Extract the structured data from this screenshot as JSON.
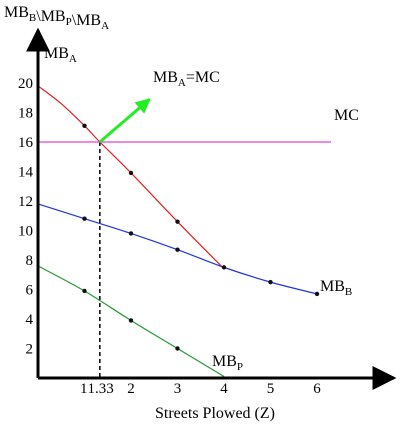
{
  "chart_data": {
    "type": "line",
    "title": "",
    "ylabel": {
      "parts": [
        {
          "text": "MB",
          "sub": "B"
        },
        {
          "text": "\\MB",
          "sub": "P"
        },
        {
          "text": "\\MB",
          "sub": "A"
        }
      ]
    },
    "xlabel": "Streets Plowed (Z)",
    "xlim": [
      0,
      7.2
    ],
    "ylim": [
      0,
      21
    ],
    "x_ticks": [
      {
        "value": 1,
        "label": "1"
      },
      {
        "value": 1.33,
        "label": "1.33"
      },
      {
        "value": 2,
        "label": "2"
      },
      {
        "value": 3,
        "label": "3"
      },
      {
        "value": 4,
        "label": "4"
      },
      {
        "value": 5,
        "label": "5"
      },
      {
        "value": 6,
        "label": "6"
      }
    ],
    "y_ticks": [
      {
        "value": 2,
        "label": "2"
      },
      {
        "value": 4,
        "label": "4"
      },
      {
        "value": 6,
        "label": "6"
      },
      {
        "value": 8,
        "label": "8"
      },
      {
        "value": 10,
        "label": "10"
      },
      {
        "value": 12,
        "label": "12"
      },
      {
        "value": 14,
        "label": "14"
      },
      {
        "value": 16,
        "label": "16"
      },
      {
        "value": 18,
        "label": "18"
      },
      {
        "value": 20,
        "label": "20"
      }
    ],
    "series": [
      {
        "name": "MBA",
        "label": {
          "text": "MB",
          "sub": "A"
        },
        "color": "#e02020",
        "x": [
          0,
          0.5,
          1,
          1.33,
          2,
          3,
          4
        ],
        "y": [
          19.8,
          18.6,
          17.1,
          16.0,
          13.9,
          10.6,
          7.4
        ],
        "markers": [
          [
            1,
            17.1
          ],
          [
            2,
            13.9
          ],
          [
            3,
            10.6
          ]
        ]
      },
      {
        "name": "MBB",
        "label": {
          "text": "MB",
          "sub": "B"
        },
        "color": "#2233dd",
        "x": [
          0,
          1,
          2,
          3,
          4,
          5,
          6
        ],
        "y": [
          11.8,
          10.8,
          9.8,
          8.7,
          7.5,
          6.5,
          5.7
        ],
        "markers": [
          [
            1,
            10.8
          ],
          [
            2,
            9.8
          ],
          [
            3,
            8.7
          ],
          [
            4,
            7.5
          ],
          [
            5,
            6.5
          ],
          [
            6,
            5.7
          ]
        ]
      },
      {
        "name": "MBP",
        "label": {
          "text": "MB",
          "sub": "P"
        },
        "color": "#229933",
        "x": [
          0,
          1,
          2,
          3,
          4
        ],
        "y": [
          7.6,
          5.9,
          3.9,
          2.0,
          0.1
        ],
        "markers": [
          [
            1,
            5.9
          ],
          [
            2,
            3.9
          ],
          [
            3,
            2.0
          ]
        ]
      },
      {
        "name": "MC",
        "label": {
          "text": "MC"
        },
        "color": "#dd44dd",
        "x": [
          0,
          6.3
        ],
        "y": [
          16,
          16
        ]
      }
    ],
    "annotations": [
      {
        "label": {
          "text": "MB",
          "sub": "A",
          "tail": "=MC"
        },
        "color": "#22ee22",
        "point": [
          1.33,
          16.0
        ],
        "arrow_to": [
          2.4,
          18.9
        ]
      }
    ],
    "dropline": {
      "x": 1.33,
      "y": 16.0,
      "style": "dashed"
    },
    "grid": false,
    "legend": "none"
  }
}
